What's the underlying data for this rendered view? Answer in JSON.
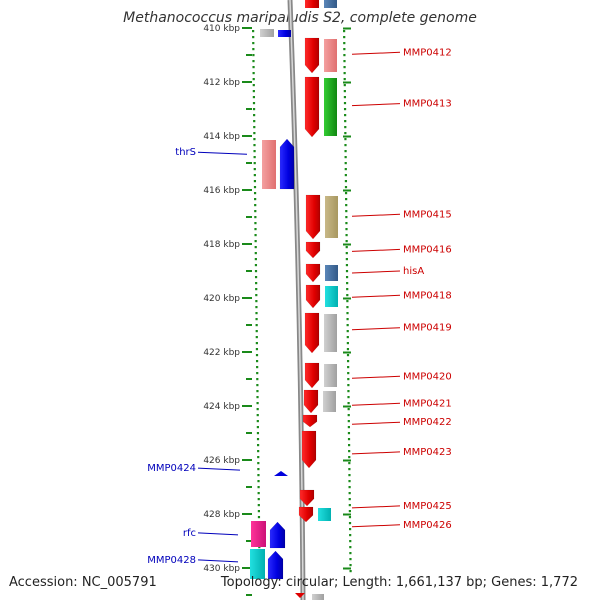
{
  "title": "Methanococcus maripaludis S2, complete genome",
  "accession": "Accession: NC_005791",
  "summary": "Topology: circular; Length: 1,661,137 bp; Genes: 1,772",
  "ruler_labels": [
    {
      "label": "410 kbp",
      "kbp": 410
    },
    {
      "label": "412 kbp",
      "kbp": 412
    },
    {
      "label": "414 kbp",
      "kbp": 414
    },
    {
      "label": "416 kbp",
      "kbp": 416
    },
    {
      "label": "418 kbp",
      "kbp": 418
    },
    {
      "label": "420 kbp",
      "kbp": 420
    },
    {
      "label": "422 kbp",
      "kbp": 422
    },
    {
      "label": "424 kbp",
      "kbp": 424
    },
    {
      "label": "426 kbp",
      "kbp": 426
    },
    {
      "label": "428 kbp",
      "kbp": 428
    },
    {
      "label": "430 kbp",
      "kbp": 430
    }
  ],
  "reverse_strand_labels": [
    {
      "label": "thrS",
      "kbp": 414.6
    },
    {
      "label": "MMP0424",
      "kbp": 426.3
    },
    {
      "label": "rfc",
      "kbp": 428.7
    },
    {
      "label": "MMP0428",
      "kbp": 429.7
    }
  ],
  "forward_strand_labels": [
    {
      "label": "MMP0412",
      "kbp": 410.9
    },
    {
      "label": "MMP0413",
      "kbp": 412.8
    },
    {
      "label": "MMP0415",
      "kbp": 416.9
    },
    {
      "label": "MMP0416",
      "kbp": 418.2
    },
    {
      "label": "hisA",
      "kbp": 419.0
    },
    {
      "label": "MMP0418",
      "kbp": 419.9
    },
    {
      "label": "MMP0419",
      "kbp": 421.1
    },
    {
      "label": "MMP0420",
      "kbp": 422.9
    },
    {
      "label": "MMP0421",
      "kbp": 423.9
    },
    {
      "label": "MMP0422",
      "kbp": 424.6
    },
    {
      "label": "MMP0423",
      "kbp": 425.7
    },
    {
      "label": "MMP0425",
      "kbp": 427.7
    },
    {
      "label": "MMP0426",
      "kbp": 428.4
    }
  ],
  "colors": {
    "forward_label": "#cc0000",
    "reverse_label": "#0000bb",
    "ruler": "#1a8a1a",
    "backbone": "#888888"
  }
}
